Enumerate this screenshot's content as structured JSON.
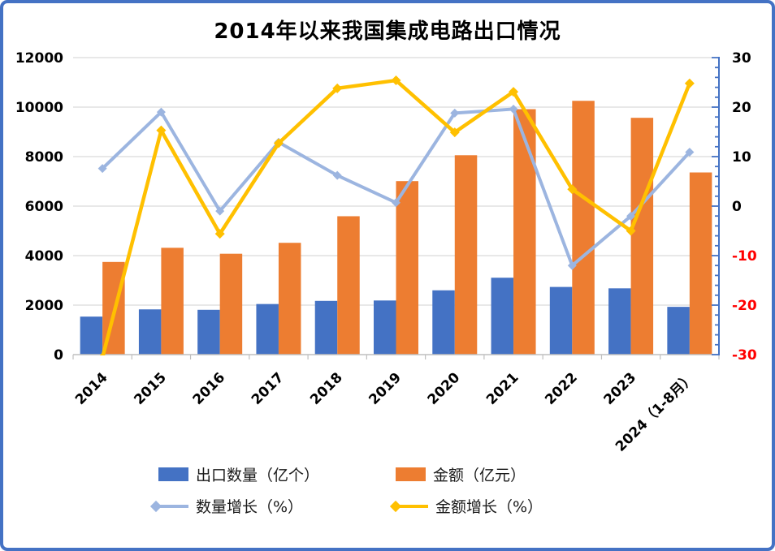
{
  "frame": {
    "background": "#FFFFFF",
    "border_color": "#4472C4"
  },
  "title": {
    "text": "2014年以来我国集成电路出口情况"
  },
  "chart_data": {
    "type": "combo-bar-line",
    "title": "2014年以来我国集成电路出口情况",
    "categories": [
      "2014",
      "2015",
      "2016",
      "2017",
      "2018",
      "2019",
      "2020",
      "2021",
      "2022",
      "2023",
      "2024（1-8月）"
    ],
    "series": [
      {
        "name": "出口数量（亿个）",
        "type": "bar",
        "axis": "left",
        "color": "#4472C4",
        "values": [
          1536,
          1828,
          1810,
          2044,
          2171,
          2187,
          2598,
          3107,
          2734,
          2678,
          1930
        ]
      },
      {
        "name": "金额（亿元）",
        "type": "bar",
        "axis": "left",
        "color": "#ED7D31",
        "values": [
          3744,
          4316,
          4076,
          4517,
          5591,
          7010,
          8056,
          9917,
          10254,
          9568,
          7360
        ]
      },
      {
        "name": "数量增长（%）",
        "type": "line",
        "axis": "right",
        "color": "#9CB5E0",
        "marker": "diamond",
        "values": [
          7.6,
          19.0,
          -1.0,
          12.9,
          6.2,
          0.7,
          18.8,
          19.6,
          -12.0,
          -2.0,
          10.9
        ]
      },
      {
        "name": "金额增长（%）",
        "type": "line",
        "axis": "right",
        "color": "#FFC000",
        "marker": "diamond",
        "values": [
          -30.6,
          15.3,
          -5.6,
          12.7,
          23.8,
          25.4,
          14.9,
          23.1,
          3.4,
          -5.0,
          24.8
        ]
      }
    ],
    "left_axis": {
      "min": 0,
      "max": 12000,
      "step": 2000,
      "labels": [
        "0",
        "2000",
        "4000",
        "6000",
        "8000",
        "10000",
        "12000"
      ]
    },
    "right_axis": {
      "min": -30,
      "max": 30,
      "step": 10,
      "minor_step": 2,
      "labels": [
        "-30",
        "-20",
        "-10",
        "0",
        "10",
        "20",
        "30"
      ],
      "axis_color": "#4472C4",
      "negative_color": "#FF0000",
      "positive_color": "#000000"
    },
    "grid": true,
    "grid_color": "#D9D9D9",
    "x_axis_color": "#BFBFBF",
    "legend_position": "bottom"
  },
  "legend": {
    "items": [
      {
        "label": "出口数量（亿个）",
        "swatch": "rect",
        "color": "#4472C4"
      },
      {
        "label": "金额（亿元）",
        "swatch": "rect",
        "color": "#ED7D31"
      },
      {
        "label": "数量增长（%）",
        "swatch": "line-diamond",
        "color": "#9CB5E0"
      },
      {
        "label": "金额增长（%）",
        "swatch": "line-diamond",
        "color": "#FFC000"
      }
    ]
  }
}
